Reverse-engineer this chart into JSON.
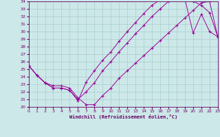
{
  "xlabel": "Windchill (Refroidissement éolien,°C)",
  "xlim": [
    0,
    23
  ],
  "ylim": [
    20,
    34
  ],
  "xticks": [
    0,
    1,
    2,
    3,
    4,
    5,
    6,
    7,
    8,
    9,
    10,
    11,
    12,
    13,
    14,
    15,
    16,
    17,
    18,
    19,
    20,
    21,
    22,
    23
  ],
  "yticks": [
    20,
    21,
    22,
    23,
    24,
    25,
    26,
    27,
    28,
    29,
    30,
    31,
    32,
    33,
    34
  ],
  "bg_color": "#cce8e8",
  "grid_color": "#aacccc",
  "line_color": "#990099",
  "line1_x": [
    0,
    1,
    2,
    3,
    4,
    5,
    6,
    7,
    8,
    9,
    10,
    11,
    12,
    13,
    14,
    15,
    16,
    17,
    18,
    19,
    20,
    21,
    22,
    23
  ],
  "line1_y": [
    25.5,
    24.2,
    23.2,
    22.5,
    22.5,
    22.2,
    20.8,
    23.3,
    24.8,
    26.2,
    27.3,
    28.7,
    30.0,
    31.2,
    32.4,
    33.5,
    34.2,
    34.4,
    34.3,
    34.3,
    29.8,
    32.3,
    30.0,
    29.3
  ],
  "line2_x": [
    0,
    1,
    2,
    3,
    4,
    5,
    6,
    7,
    8,
    9,
    10,
    11,
    12,
    13,
    14,
    15,
    16,
    17,
    18,
    19,
    20,
    21,
    22,
    23
  ],
  "line2_y": [
    25.5,
    24.2,
    23.2,
    22.5,
    22.5,
    22.2,
    21.0,
    22.0,
    23.2,
    24.8,
    26.0,
    27.3,
    28.5,
    29.7,
    30.8,
    32.0,
    33.0,
    34.0,
    34.5,
    34.5,
    34.0,
    33.5,
    32.5,
    29.3
  ],
  "line3_x": [
    0,
    1,
    2,
    3,
    4,
    5,
    6,
    7,
    8,
    9,
    10,
    11,
    12,
    13,
    14,
    15,
    16,
    17,
    18,
    19,
    20,
    21,
    22,
    23
  ],
  "line3_y": [
    25.5,
    24.2,
    23.2,
    22.8,
    22.8,
    22.5,
    21.2,
    20.3,
    20.3,
    21.5,
    22.5,
    23.8,
    24.8,
    25.8,
    26.8,
    27.8,
    28.8,
    29.8,
    30.8,
    31.8,
    32.8,
    33.8,
    34.0,
    29.3
  ]
}
